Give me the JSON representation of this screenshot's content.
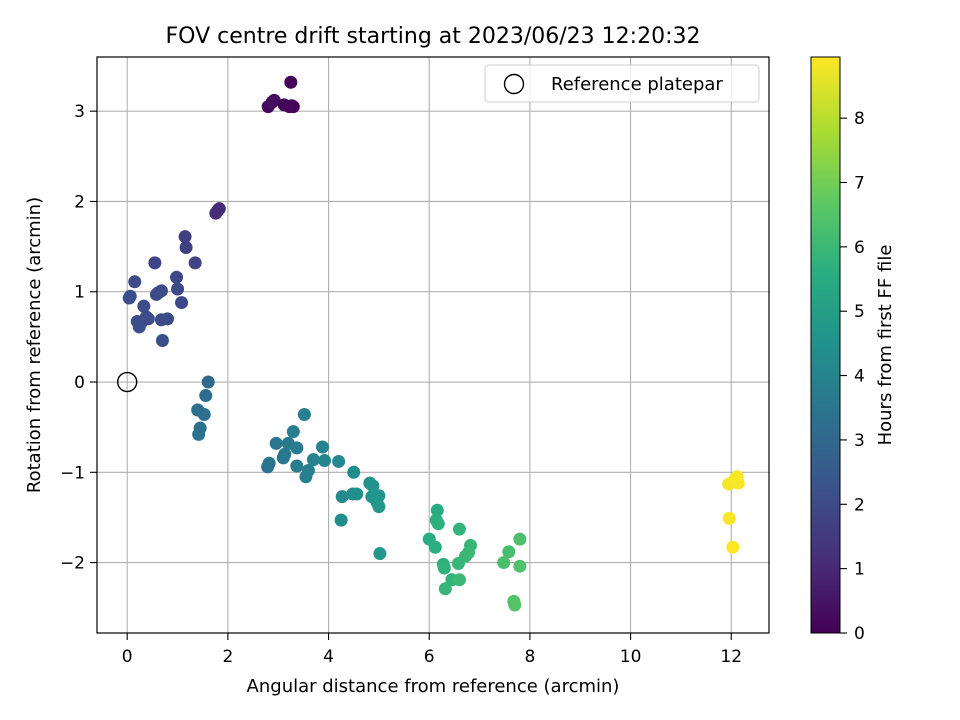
{
  "chart_data": {
    "type": "scatter",
    "title": "FOV centre drift starting at 2023/06/23 12:20:32",
    "xlabel": "Angular distance from reference (arcmin)",
    "ylabel": "Rotation from reference (arcmin)",
    "colorbar_label": "Hours from first FF file",
    "colormap": "viridis",
    "grid": true,
    "legend_position": "top-right",
    "xlim": [
      -0.6,
      12.75
    ],
    "ylim": [
      -2.78,
      3.6
    ],
    "clim": [
      0,
      8.95
    ],
    "x_ticks": [
      0,
      2,
      4,
      6,
      8,
      10,
      12
    ],
    "x_tick_labels": [
      "0",
      "2",
      "4",
      "6",
      "8",
      "10",
      "12"
    ],
    "y_ticks": [
      -2,
      -1,
      0,
      1,
      2,
      3
    ],
    "y_tick_labels": [
      "−2",
      "−1",
      "0",
      "1",
      "2",
      "3"
    ],
    "c_ticks": [
      0,
      1,
      2,
      3,
      4,
      5,
      6,
      7,
      8
    ],
    "c_tick_labels": [
      "0",
      "1",
      "2",
      "3",
      "4",
      "5",
      "6",
      "7",
      "8"
    ],
    "reference": {
      "label": "Reference platepar",
      "x": 0,
      "y": 0
    },
    "points": [
      {
        "x": 3.25,
        "y": 3.32,
        "h": 0.05
      },
      {
        "x": 2.8,
        "y": 3.05,
        "h": 0.2
      },
      {
        "x": 2.88,
        "y": 3.1,
        "h": 0.3
      },
      {
        "x": 2.92,
        "y": 3.12,
        "h": 0.35
      },
      {
        "x": 3.12,
        "y": 3.07,
        "h": 0.1
      },
      {
        "x": 3.27,
        "y": 3.06,
        "h": 0.05
      },
      {
        "x": 3.3,
        "y": 3.05,
        "h": 0.08
      },
      {
        "x": 3.22,
        "y": 3.05,
        "h": 0.12
      },
      {
        "x": 1.83,
        "y": 1.92,
        "h": 1.1
      },
      {
        "x": 1.76,
        "y": 1.87,
        "h": 1.15
      },
      {
        "x": 1.8,
        "y": 1.9,
        "h": 1.12
      },
      {
        "x": 1.15,
        "y": 1.61,
        "h": 1.7
      },
      {
        "x": 1.17,
        "y": 1.49,
        "h": 1.75
      },
      {
        "x": 1.35,
        "y": 1.32,
        "h": 1.8
      },
      {
        "x": 0.55,
        "y": 1.32,
        "h": 1.9
      },
      {
        "x": 0.98,
        "y": 1.16,
        "h": 1.95
      },
      {
        "x": 0.15,
        "y": 1.11,
        "h": 2.05
      },
      {
        "x": 0.68,
        "y": 1.01,
        "h": 2.0
      },
      {
        "x": 0.62,
        "y": 0.99,
        "h": 2.1
      },
      {
        "x": 0.58,
        "y": 0.97,
        "h": 2.05
      },
      {
        "x": 1.0,
        "y": 1.03,
        "h": 2.0
      },
      {
        "x": 0.06,
        "y": 0.95,
        "h": 2.15
      },
      {
        "x": 0.04,
        "y": 0.93,
        "h": 2.2
      },
      {
        "x": 0.33,
        "y": 0.84,
        "h": 2.1
      },
      {
        "x": 1.08,
        "y": 0.88,
        "h": 1.95
      },
      {
        "x": 0.2,
        "y": 0.67,
        "h": 2.15
      },
      {
        "x": 0.28,
        "y": 0.66,
        "h": 2.2
      },
      {
        "x": 0.38,
        "y": 0.72,
        "h": 2.1
      },
      {
        "x": 0.42,
        "y": 0.7,
        "h": 2.15
      },
      {
        "x": 0.24,
        "y": 0.61,
        "h": 2.2
      },
      {
        "x": 0.68,
        "y": 0.69,
        "h": 2.05
      },
      {
        "x": 0.8,
        "y": 0.7,
        "h": 2.1
      },
      {
        "x": 0.7,
        "y": 0.46,
        "h": 2.2
      },
      {
        "x": 1.61,
        "y": 0.0,
        "h": 3.1
      },
      {
        "x": 1.56,
        "y": -0.15,
        "h": 3.15
      },
      {
        "x": 1.4,
        "y": -0.31,
        "h": 3.25
      },
      {
        "x": 1.53,
        "y": -0.36,
        "h": 3.3
      },
      {
        "x": 1.45,
        "y": -0.51,
        "h": 3.35
      },
      {
        "x": 1.42,
        "y": -0.58,
        "h": 3.4
      },
      {
        "x": 3.52,
        "y": -0.36,
        "h": 3.9
      },
      {
        "x": 3.3,
        "y": -0.55,
        "h": 3.8
      },
      {
        "x": 2.96,
        "y": -0.68,
        "h": 3.55
      },
      {
        "x": 3.2,
        "y": -0.68,
        "h": 3.6
      },
      {
        "x": 3.37,
        "y": -0.73,
        "h": 3.7
      },
      {
        "x": 3.13,
        "y": -0.8,
        "h": 3.6
      },
      {
        "x": 3.1,
        "y": -0.84,
        "h": 3.65
      },
      {
        "x": 2.82,
        "y": -0.9,
        "h": 3.5
      },
      {
        "x": 2.79,
        "y": -0.94,
        "h": 3.45
      },
      {
        "x": 3.37,
        "y": -0.93,
        "h": 3.75
      },
      {
        "x": 3.7,
        "y": -0.86,
        "h": 4.0
      },
      {
        "x": 3.88,
        "y": -0.72,
        "h": 4.05
      },
      {
        "x": 3.92,
        "y": -0.87,
        "h": 4.1
      },
      {
        "x": 4.2,
        "y": -0.88,
        "h": 4.2
      },
      {
        "x": 3.6,
        "y": -0.98,
        "h": 3.95
      },
      {
        "x": 3.55,
        "y": -1.05,
        "h": 3.9
      },
      {
        "x": 4.5,
        "y": -1.0,
        "h": 4.35
      },
      {
        "x": 4.27,
        "y": -1.27,
        "h": 4.3
      },
      {
        "x": 4.48,
        "y": -1.24,
        "h": 4.4
      },
      {
        "x": 4.56,
        "y": -1.24,
        "h": 4.45
      },
      {
        "x": 4.25,
        "y": -1.53,
        "h": 4.35
      },
      {
        "x": 4.82,
        "y": -1.12,
        "h": 4.55
      },
      {
        "x": 4.88,
        "y": -1.15,
        "h": 4.6
      },
      {
        "x": 4.86,
        "y": -1.27,
        "h": 4.65
      },
      {
        "x": 5.0,
        "y": -1.26,
        "h": 4.7
      },
      {
        "x": 4.96,
        "y": -1.33,
        "h": 4.7
      },
      {
        "x": 5.0,
        "y": -1.38,
        "h": 4.75
      },
      {
        "x": 5.02,
        "y": -1.9,
        "h": 4.8
      },
      {
        "x": 6.16,
        "y": -1.42,
        "h": 5.6
      },
      {
        "x": 6.14,
        "y": -1.53,
        "h": 5.65
      },
      {
        "x": 6.18,
        "y": -1.57,
        "h": 5.7
      },
      {
        "x": 6.0,
        "y": -1.74,
        "h": 5.6
      },
      {
        "x": 6.12,
        "y": -1.83,
        "h": 5.65
      },
      {
        "x": 6.28,
        "y": -2.02,
        "h": 5.75
      },
      {
        "x": 6.3,
        "y": -2.06,
        "h": 5.8
      },
      {
        "x": 6.45,
        "y": -2.19,
        "h": 5.85
      },
      {
        "x": 6.32,
        "y": -2.29,
        "h": 5.9
      },
      {
        "x": 6.6,
        "y": -1.63,
        "h": 5.85
      },
      {
        "x": 6.82,
        "y": -1.81,
        "h": 5.95
      },
      {
        "x": 6.78,
        "y": -1.89,
        "h": 6.0
      },
      {
        "x": 6.72,
        "y": -1.93,
        "h": 6.0
      },
      {
        "x": 6.58,
        "y": -2.01,
        "h": 5.95
      },
      {
        "x": 6.6,
        "y": -2.19,
        "h": 6.05
      },
      {
        "x": 7.58,
        "y": -1.88,
        "h": 6.3
      },
      {
        "x": 7.48,
        "y": -2.0,
        "h": 6.35
      },
      {
        "x": 7.8,
        "y": -1.74,
        "h": 6.4
      },
      {
        "x": 7.8,
        "y": -2.04,
        "h": 6.45
      },
      {
        "x": 7.68,
        "y": -2.43,
        "h": 6.5
      },
      {
        "x": 7.7,
        "y": -2.47,
        "h": 6.55
      },
      {
        "x": 11.95,
        "y": -1.13,
        "h": 8.8
      },
      {
        "x": 12.08,
        "y": -1.07,
        "h": 8.85
      },
      {
        "x": 12.14,
        "y": -1.12,
        "h": 8.85
      },
      {
        "x": 12.12,
        "y": -1.05,
        "h": 8.9
      },
      {
        "x": 11.96,
        "y": -1.51,
        "h": 8.9
      },
      {
        "x": 12.03,
        "y": -1.83,
        "h": 8.95
      }
    ]
  }
}
